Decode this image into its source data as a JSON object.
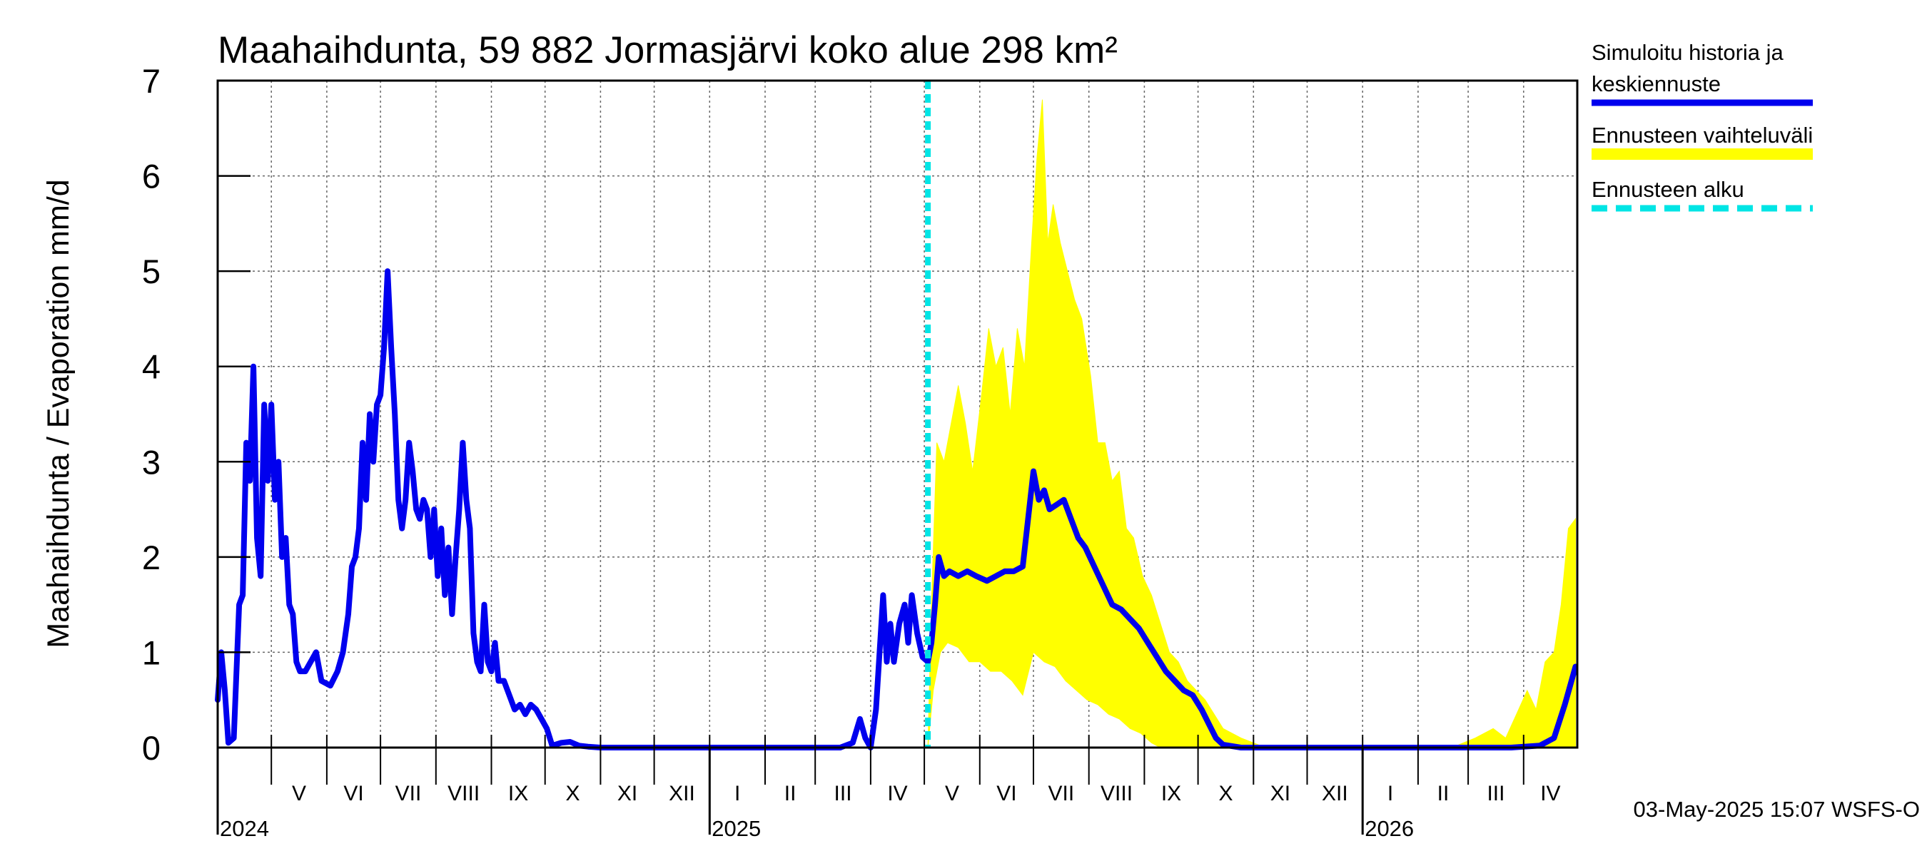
{
  "chart_data": {
    "type": "line",
    "title": "Maahaihdunta, 59 882 Jormasjärvi koko alue 298 km²",
    "ylabel": "Maahaihdunta / Evaporation   mm/d",
    "xlabel": "",
    "ylim": [
      0,
      7
    ],
    "yticks": [
      "0",
      "1",
      "2",
      "3",
      "4",
      "5",
      "6",
      "7"
    ],
    "grid": true,
    "legend_position": "right",
    "x_start": "2024-04-01",
    "x_end": "2026-04-30",
    "months": [
      {
        "label": "V",
        "start": "2024-05-01"
      },
      {
        "label": "VI",
        "start": "2024-06-01"
      },
      {
        "label": "VII",
        "start": "2024-07-01"
      },
      {
        "label": "VIII",
        "start": "2024-08-01"
      },
      {
        "label": "IX",
        "start": "2024-09-01"
      },
      {
        "label": "X",
        "start": "2024-10-01"
      },
      {
        "label": "XI",
        "start": "2024-11-01"
      },
      {
        "label": "XII",
        "start": "2024-12-01"
      },
      {
        "label": "I",
        "start": "2025-01-01"
      },
      {
        "label": "II",
        "start": "2025-02-01"
      },
      {
        "label": "III",
        "start": "2025-03-01"
      },
      {
        "label": "IV",
        "start": "2025-04-01"
      },
      {
        "label": "V",
        "start": "2025-05-01"
      },
      {
        "label": "VI",
        "start": "2025-06-01"
      },
      {
        "label": "VII",
        "start": "2025-07-01"
      },
      {
        "label": "VIII",
        "start": "2025-08-01"
      },
      {
        "label": "IX",
        "start": "2025-09-01"
      },
      {
        "label": "X",
        "start": "2025-10-01"
      },
      {
        "label": "XI",
        "start": "2025-11-01"
      },
      {
        "label": "XII",
        "start": "2025-12-01"
      },
      {
        "label": "I",
        "start": "2026-01-01"
      },
      {
        "label": "II",
        "start": "2026-02-01"
      },
      {
        "label": "III",
        "start": "2026-03-01"
      },
      {
        "label": "IV",
        "start": "2026-04-01"
      }
    ],
    "years": [
      {
        "label": "2024",
        "date": "2024-04-01"
      },
      {
        "label": "2025",
        "date": "2025-01-01"
      },
      {
        "label": "2026",
        "date": "2026-01-01"
      }
    ],
    "forecast_start": "2025-05-03",
    "series": [
      {
        "name": "Simuloitu historia ja keskiennuste",
        "color": "#0000ee",
        "points": [
          [
            "2024-04-01",
            0.5
          ],
          [
            "2024-04-03",
            1.0
          ],
          [
            "2024-04-05",
            0.6
          ],
          [
            "2024-04-07",
            0.05
          ],
          [
            "2024-04-10",
            0.1
          ],
          [
            "2024-04-13",
            1.5
          ],
          [
            "2024-04-15",
            1.6
          ],
          [
            "2024-04-17",
            3.2
          ],
          [
            "2024-04-19",
            2.8
          ],
          [
            "2024-04-21",
            4.0
          ],
          [
            "2024-04-23",
            2.2
          ],
          [
            "2024-04-25",
            1.8
          ],
          [
            "2024-04-27",
            3.6
          ],
          [
            "2024-04-29",
            2.8
          ],
          [
            "2024-05-01",
            3.6
          ],
          [
            "2024-05-03",
            2.6
          ],
          [
            "2024-05-05",
            3.0
          ],
          [
            "2024-05-07",
            2.0
          ],
          [
            "2024-05-09",
            2.2
          ],
          [
            "2024-05-11",
            1.5
          ],
          [
            "2024-05-13",
            1.4
          ],
          [
            "2024-05-15",
            0.9
          ],
          [
            "2024-05-17",
            0.8
          ],
          [
            "2024-05-20",
            0.8
          ],
          [
            "2024-05-23",
            0.9
          ],
          [
            "2024-05-26",
            1.0
          ],
          [
            "2024-05-29",
            0.7
          ],
          [
            "2024-06-03",
            0.65
          ],
          [
            "2024-06-07",
            0.8
          ],
          [
            "2024-06-10",
            1.0
          ],
          [
            "2024-06-13",
            1.4
          ],
          [
            "2024-06-15",
            1.9
          ],
          [
            "2024-06-17",
            2.0
          ],
          [
            "2024-06-19",
            2.3
          ],
          [
            "2024-06-21",
            3.2
          ],
          [
            "2024-06-23",
            2.6
          ],
          [
            "2024-06-25",
            3.5
          ],
          [
            "2024-06-27",
            3.0
          ],
          [
            "2024-06-29",
            3.6
          ],
          [
            "2024-07-01",
            3.7
          ],
          [
            "2024-07-03",
            4.2
          ],
          [
            "2024-07-05",
            5.0
          ],
          [
            "2024-07-07",
            4.2
          ],
          [
            "2024-07-09",
            3.5
          ],
          [
            "2024-07-11",
            2.6
          ],
          [
            "2024-07-13",
            2.3
          ],
          [
            "2024-07-15",
            2.6
          ],
          [
            "2024-07-17",
            3.2
          ],
          [
            "2024-07-19",
            2.9
          ],
          [
            "2024-07-21",
            2.5
          ],
          [
            "2024-07-23",
            2.4
          ],
          [
            "2024-07-25",
            2.6
          ],
          [
            "2024-07-27",
            2.5
          ],
          [
            "2024-07-29",
            2.0
          ],
          [
            "2024-07-31",
            2.5
          ],
          [
            "2024-08-02",
            1.8
          ],
          [
            "2024-08-04",
            2.3
          ],
          [
            "2024-08-06",
            1.6
          ],
          [
            "2024-08-08",
            2.1
          ],
          [
            "2024-08-10",
            1.4
          ],
          [
            "2024-08-12",
            2.0
          ],
          [
            "2024-08-14",
            2.5
          ],
          [
            "2024-08-16",
            3.2
          ],
          [
            "2024-08-18",
            2.6
          ],
          [
            "2024-08-20",
            2.3
          ],
          [
            "2024-08-22",
            1.2
          ],
          [
            "2024-08-24",
            0.9
          ],
          [
            "2024-08-26",
            0.8
          ],
          [
            "2024-08-28",
            1.5
          ],
          [
            "2024-08-30",
            0.9
          ],
          [
            "2024-09-01",
            0.8
          ],
          [
            "2024-09-03",
            1.1
          ],
          [
            "2024-09-05",
            0.7
          ],
          [
            "2024-09-08",
            0.7
          ],
          [
            "2024-09-11",
            0.55
          ],
          [
            "2024-09-14",
            0.4
          ],
          [
            "2024-09-17",
            0.45
          ],
          [
            "2024-09-20",
            0.35
          ],
          [
            "2024-09-23",
            0.45
          ],
          [
            "2024-09-26",
            0.4
          ],
          [
            "2024-09-29",
            0.3
          ],
          [
            "2024-10-02",
            0.2
          ],
          [
            "2024-10-05",
            0.02
          ],
          [
            "2024-10-10",
            0.05
          ],
          [
            "2024-10-15",
            0.06
          ],
          [
            "2024-10-20",
            0.02
          ],
          [
            "2024-10-25",
            0.01
          ],
          [
            "2024-11-01",
            0.0
          ],
          [
            "2025-03-01",
            0.0
          ],
          [
            "2025-03-15",
            0.0
          ],
          [
            "2025-03-22",
            0.05
          ],
          [
            "2025-03-26",
            0.3
          ],
          [
            "2025-03-29",
            0.1
          ],
          [
            "2025-04-01",
            0.0
          ],
          [
            "2025-04-04",
            0.4
          ],
          [
            "2025-04-06",
            1.0
          ],
          [
            "2025-04-08",
            1.6
          ],
          [
            "2025-04-10",
            0.9
          ],
          [
            "2025-04-12",
            1.3
          ],
          [
            "2025-04-14",
            0.9
          ],
          [
            "2025-04-17",
            1.3
          ],
          [
            "2025-04-20",
            1.5
          ],
          [
            "2025-04-22",
            1.1
          ],
          [
            "2025-04-24",
            1.6
          ],
          [
            "2025-04-27",
            1.2
          ],
          [
            "2025-04-30",
            0.95
          ],
          [
            "2025-05-03",
            0.9
          ],
          [
            "2025-05-05",
            1.1
          ],
          [
            "2025-05-07",
            1.5
          ],
          [
            "2025-05-09",
            2.0
          ],
          [
            "2025-05-12",
            1.8
          ],
          [
            "2025-05-15",
            1.85
          ],
          [
            "2025-05-20",
            1.8
          ],
          [
            "2025-05-25",
            1.85
          ],
          [
            "2025-05-30",
            1.8
          ],
          [
            "2025-06-05",
            1.75
          ],
          [
            "2025-06-10",
            1.8
          ],
          [
            "2025-06-15",
            1.85
          ],
          [
            "2025-06-20",
            1.85
          ],
          [
            "2025-06-25",
            1.9
          ],
          [
            "2025-07-01",
            2.9
          ],
          [
            "2025-07-04",
            2.6
          ],
          [
            "2025-07-07",
            2.7
          ],
          [
            "2025-07-10",
            2.5
          ],
          [
            "2025-07-14",
            2.55
          ],
          [
            "2025-07-18",
            2.6
          ],
          [
            "2025-07-22",
            2.4
          ],
          [
            "2025-07-26",
            2.2
          ],
          [
            "2025-07-30",
            2.1
          ],
          [
            "2025-08-04",
            1.9
          ],
          [
            "2025-08-09",
            1.7
          ],
          [
            "2025-08-14",
            1.5
          ],
          [
            "2025-08-19",
            1.45
          ],
          [
            "2025-08-24",
            1.35
          ],
          [
            "2025-08-29",
            1.25
          ],
          [
            "2025-09-03",
            1.1
          ],
          [
            "2025-09-08",
            0.95
          ],
          [
            "2025-09-13",
            0.8
          ],
          [
            "2025-09-18",
            0.7
          ],
          [
            "2025-09-23",
            0.6
          ],
          [
            "2025-09-28",
            0.55
          ],
          [
            "2025-10-03",
            0.4
          ],
          [
            "2025-10-07",
            0.25
          ],
          [
            "2025-10-11",
            0.1
          ],
          [
            "2025-10-15",
            0.03
          ],
          [
            "2025-10-25",
            0.0
          ],
          [
            "2026-03-25",
            0.0
          ],
          [
            "2026-04-10",
            0.02
          ],
          [
            "2026-04-18",
            0.1
          ],
          [
            "2026-04-24",
            0.45
          ],
          [
            "2026-04-30",
            0.85
          ]
        ]
      }
    ],
    "band": {
      "name": "Ennusteen vaihteluväli",
      "color": "#ffff00",
      "upper": [
        [
          "2025-05-03",
          0.0
        ],
        [
          "2025-05-05",
          1.5
        ],
        [
          "2025-05-08",
          3.2
        ],
        [
          "2025-05-12",
          3.0
        ],
        [
          "2025-05-16",
          3.4
        ],
        [
          "2025-05-20",
          3.8
        ],
        [
          "2025-05-24",
          3.4
        ],
        [
          "2025-05-28",
          2.9
        ],
        [
          "2025-06-02",
          3.7
        ],
        [
          "2025-06-06",
          4.4
        ],
        [
          "2025-06-10",
          4.0
        ],
        [
          "2025-06-14",
          4.2
        ],
        [
          "2025-06-18",
          3.5
        ],
        [
          "2025-06-22",
          4.4
        ],
        [
          "2025-06-26",
          4.0
        ],
        [
          "2025-06-30",
          5.3
        ],
        [
          "2025-07-03",
          6.2
        ],
        [
          "2025-07-06",
          6.8
        ],
        [
          "2025-07-09",
          5.3
        ],
        [
          "2025-07-12",
          5.7
        ],
        [
          "2025-07-16",
          5.3
        ],
        [
          "2025-07-20",
          5.0
        ],
        [
          "2025-07-24",
          4.7
        ],
        [
          "2025-07-28",
          4.5
        ],
        [
          "2025-08-02",
          3.9
        ],
        [
          "2025-08-06",
          3.2
        ],
        [
          "2025-08-10",
          3.2
        ],
        [
          "2025-08-14",
          2.8
        ],
        [
          "2025-08-18",
          2.9
        ],
        [
          "2025-08-22",
          2.3
        ],
        [
          "2025-08-26",
          2.2
        ],
        [
          "2025-08-31",
          1.8
        ],
        [
          "2025-09-05",
          1.6
        ],
        [
          "2025-09-10",
          1.3
        ],
        [
          "2025-09-15",
          1.0
        ],
        [
          "2025-09-20",
          0.9
        ],
        [
          "2025-09-25",
          0.7
        ],
        [
          "2025-09-30",
          0.6
        ],
        [
          "2025-10-05",
          0.5
        ],
        [
          "2025-10-10",
          0.35
        ],
        [
          "2025-10-15",
          0.2
        ],
        [
          "2025-10-25",
          0.1
        ],
        [
          "2025-11-05",
          0.02
        ],
        [
          "2025-11-20",
          0.0
        ],
        [
          "2026-02-20",
          0.0
        ],
        [
          "2026-03-05",
          0.1
        ],
        [
          "2026-03-15",
          0.2
        ],
        [
          "2026-03-22",
          0.1
        ],
        [
          "2026-03-28",
          0.35
        ],
        [
          "2026-04-03",
          0.6
        ],
        [
          "2026-04-08",
          0.4
        ],
        [
          "2026-04-13",
          0.9
        ],
        [
          "2026-04-18",
          1.0
        ],
        [
          "2026-04-22",
          1.5
        ],
        [
          "2026-04-26",
          2.3
        ],
        [
          "2026-04-30",
          2.4
        ]
      ],
      "lower": [
        [
          "2025-05-03",
          0.0
        ],
        [
          "2025-05-06",
          0.6
        ],
        [
          "2025-05-10",
          1.0
        ],
        [
          "2025-05-14",
          1.1
        ],
        [
          "2025-05-20",
          1.05
        ],
        [
          "2025-05-26",
          0.9
        ],
        [
          "2025-06-01",
          0.9
        ],
        [
          "2025-06-07",
          0.8
        ],
        [
          "2025-06-13",
          0.8
        ],
        [
          "2025-06-19",
          0.7
        ],
        [
          "2025-06-25",
          0.55
        ],
        [
          "2025-07-01",
          1.0
        ],
        [
          "2025-07-07",
          0.9
        ],
        [
          "2025-07-13",
          0.85
        ],
        [
          "2025-07-19",
          0.7
        ],
        [
          "2025-07-25",
          0.6
        ],
        [
          "2025-07-31",
          0.5
        ],
        [
          "2025-08-06",
          0.45
        ],
        [
          "2025-08-12",
          0.35
        ],
        [
          "2025-08-18",
          0.3
        ],
        [
          "2025-08-24",
          0.2
        ],
        [
          "2025-08-30",
          0.15
        ],
        [
          "2025-09-05",
          0.05
        ],
        [
          "2025-09-10",
          0.0
        ],
        [
          "2026-04-30",
          0.0
        ]
      ]
    },
    "forecast_line": {
      "name": "Ennusteen alku",
      "color": "#00e5e5"
    }
  },
  "legend": {
    "line1": "Simuloitu historia ja",
    "line2": "keskiennuste",
    "band": "Ennusteen vaihteluväli",
    "start": "Ennusteen alku"
  },
  "footer": "03-May-2025 15:07 WSFS-O"
}
